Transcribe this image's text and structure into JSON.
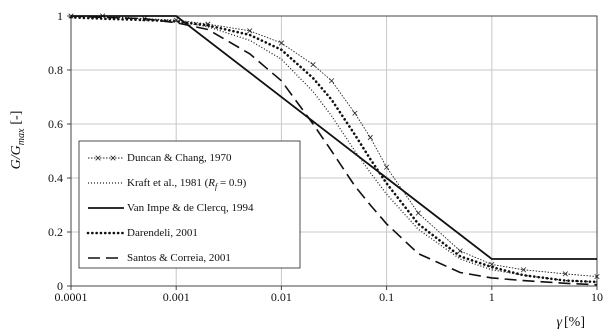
{
  "chart_data": {
    "type": "line",
    "title": "",
    "xlabel": {
      "text": "γ",
      "unit": "[%]"
    },
    "ylabel": {
      "text": "G/G",
      "sub": "max",
      "unit": "[-]"
    },
    "x_scale": "log",
    "xlim": [
      0.0001,
      10
    ],
    "ylim": [
      0,
      1
    ],
    "grid": true,
    "legend_position": "center-left",
    "x_ticks": [
      "0.0001",
      "0.001",
      "0.01",
      "0.1",
      "1",
      "10"
    ],
    "y_ticks": [
      "0",
      "0.2",
      "0.4",
      "0.6",
      "0.8",
      "1"
    ],
    "series": [
      {
        "name": "Duncan & Chang, 1970",
        "style": "dotted-x",
        "x": [
          0.0001,
          0.0002,
          0.0005,
          0.001,
          0.002,
          0.005,
          0.01,
          0.02,
          0.03,
          0.05,
          0.07,
          0.1,
          0.2,
          0.5,
          1,
          2,
          5,
          10
        ],
        "y": [
          1.0,
          1.0,
          0.99,
          0.985,
          0.97,
          0.945,
          0.9,
          0.82,
          0.76,
          0.64,
          0.55,
          0.44,
          0.27,
          0.13,
          0.08,
          0.06,
          0.045,
          0.035
        ]
      },
      {
        "name": "Kraft et al., 1981 (R_f = 0.9)",
        "style": "fine-dotted",
        "x": [
          0.0001,
          0.0002,
          0.0005,
          0.001,
          0.002,
          0.005,
          0.01,
          0.02,
          0.03,
          0.05,
          0.07,
          0.1,
          0.2,
          0.5,
          1,
          2,
          5,
          10
        ],
        "y": [
          1.0,
          0.998,
          0.99,
          0.98,
          0.96,
          0.91,
          0.84,
          0.72,
          0.63,
          0.5,
          0.42,
          0.34,
          0.21,
          0.1,
          0.06,
          0.04,
          0.02,
          0.015
        ]
      },
      {
        "name": "Van Impe & de Clercq, 1994",
        "style": "solid",
        "x": [
          0.0001,
          0.001,
          1,
          10
        ],
        "y": [
          1.0,
          1.0,
          0.1,
          0.1
        ]
      },
      {
        "name": "Darendeli, 2001",
        "style": "round-dotted",
        "x": [
          0.0001,
          0.0002,
          0.0005,
          0.001,
          0.002,
          0.005,
          0.01,
          0.02,
          0.03,
          0.05,
          0.07,
          0.1,
          0.2,
          0.5,
          1,
          2,
          5,
          10
        ],
        "y": [
          0.995,
          0.99,
          0.985,
          0.98,
          0.965,
          0.93,
          0.875,
          0.77,
          0.69,
          0.56,
          0.47,
          0.38,
          0.23,
          0.11,
          0.07,
          0.04,
          0.02,
          0.015
        ]
      },
      {
        "name": "Santos & Correia, 2001",
        "style": "long-dash",
        "x": [
          0.0001,
          0.0002,
          0.0005,
          0.001,
          0.002,
          0.005,
          0.01,
          0.02,
          0.03,
          0.05,
          0.07,
          0.1,
          0.2,
          0.5,
          1,
          2,
          5,
          10
        ],
        "y": [
          1.0,
          0.995,
          0.99,
          0.975,
          0.95,
          0.86,
          0.76,
          0.6,
          0.5,
          0.37,
          0.3,
          0.23,
          0.12,
          0.05,
          0.03,
          0.02,
          0.01,
          0.005
        ]
      }
    ],
    "legend": [
      {
        "label": "Duncan & Chang, 1970"
      },
      {
        "label_main": "Kraft et al., 1981 (",
        "label_R": "R",
        "label_sub": "f",
        "label_tail": " = 0.9)"
      },
      {
        "label": "Van Impe & de Clercq, 1994"
      },
      {
        "label": "Darendeli, 2001"
      },
      {
        "label": "Santos & Correia, 2001"
      }
    ]
  }
}
